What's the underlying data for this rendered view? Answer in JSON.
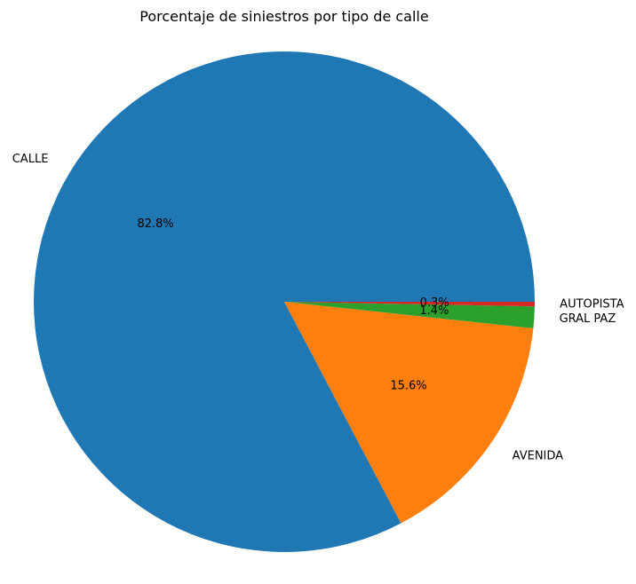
{
  "chart_data": {
    "type": "pie",
    "title": "Porcentaje de siniestros por tipo de calle",
    "start_angle_deg": 0,
    "direction": "counterclockwise",
    "slices": [
      {
        "label": "CALLE",
        "value": 82.8,
        "pct_label": "82.8%",
        "color": "#1f77b4"
      },
      {
        "label": "AVENIDA",
        "value": 15.6,
        "pct_label": "15.6%",
        "color": "#ff7f0e"
      },
      {
        "label": "GRAL PAZ",
        "value": 1.4,
        "pct_label": "1.4%",
        "color": "#2ca02c"
      },
      {
        "label": "AUTOPISTA",
        "value": 0.3,
        "pct_label": "0.3%",
        "color": "#d62728"
      }
    ]
  }
}
